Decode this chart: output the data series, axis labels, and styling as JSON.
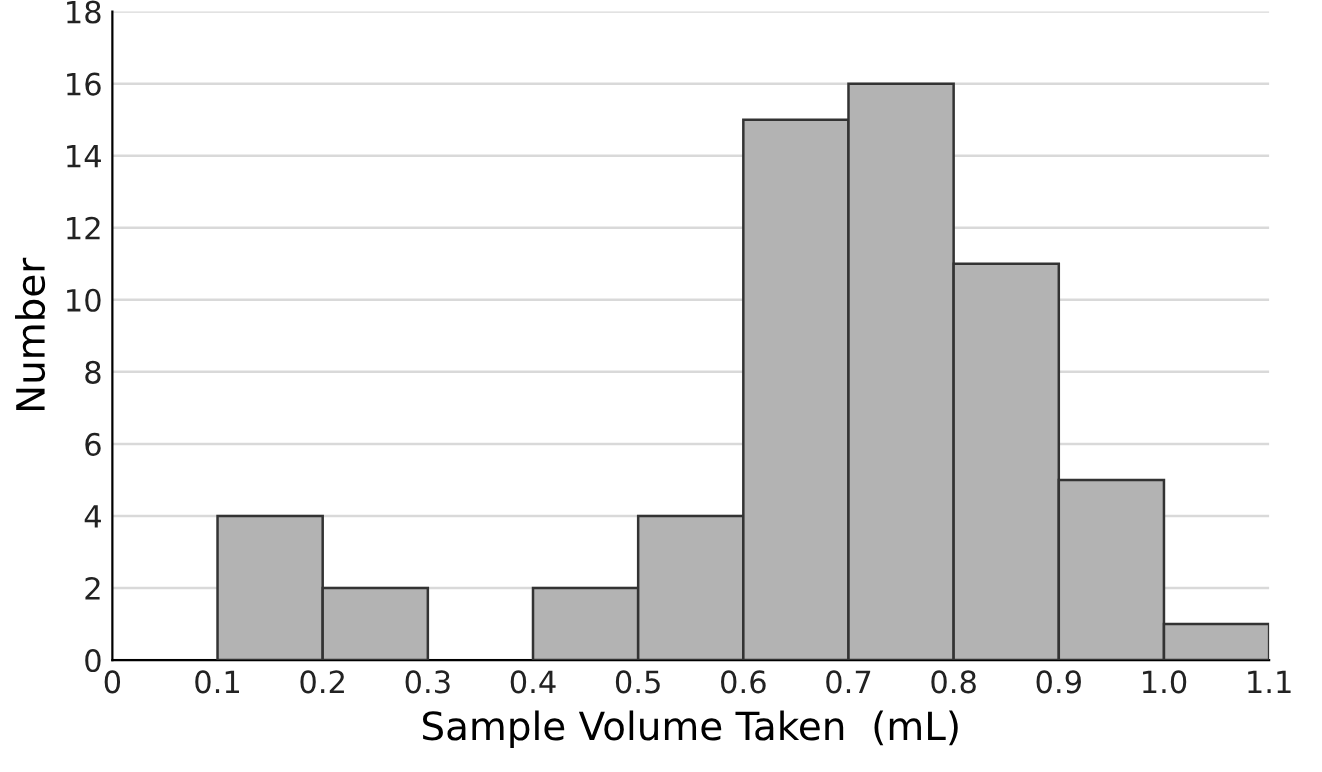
{
  "chart_data": {
    "type": "histogram",
    "xlabel": "Sample Volume Taken  (mL)",
    "ylabel": "Number",
    "bins": [
      0,
      0.1,
      0.2,
      0.3,
      0.4,
      0.5,
      0.6,
      0.7,
      0.8,
      0.9,
      1.0,
      1.1
    ],
    "values": [
      0,
      4,
      2,
      0,
      2,
      4,
      15,
      16,
      11,
      5,
      1
    ],
    "color": "#b3b3b3",
    "xlim": [
      0,
      1.1
    ],
    "xticks": [
      0,
      0.1,
      0.2,
      0.3,
      0.4,
      0.5,
      0.6,
      0.7,
      0.8,
      0.9,
      {
        "value": 1.0,
        "label": "1.0"
      },
      1.1
    ],
    "ylim": [
      0,
      18
    ],
    "yticks": [
      0,
      2,
      4,
      6,
      8,
      10,
      12,
      14,
      16,
      18
    ],
    "grid": "y"
  }
}
